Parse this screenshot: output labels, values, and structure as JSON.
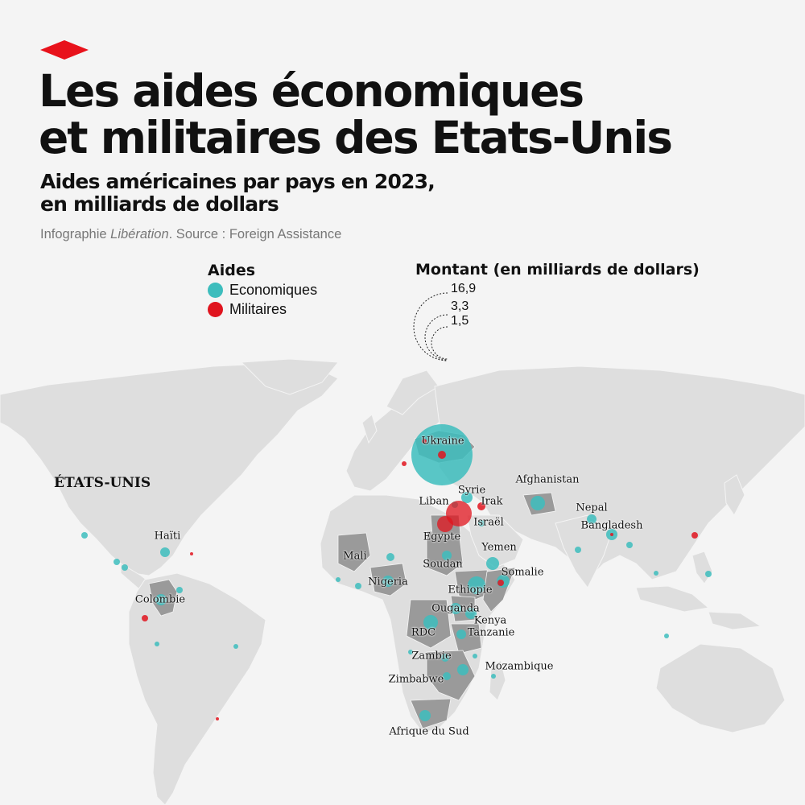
{
  "header": {
    "title_line1": "Les aides économiques",
    "title_line2": "et militaires des Etats-Unis",
    "subtitle_line1": "Aides américaines par pays en 2023,",
    "subtitle_line2": "en milliards de dollars",
    "credit_prefix": "Infographie ",
    "credit_brand": "Libération",
    "credit_suffix": ". Source : Foreign Assistance"
  },
  "legend": {
    "type_title": "Aides",
    "types": [
      {
        "label": "Economiques",
        "color": "#3dbdbd"
      },
      {
        "label": "Militaires",
        "color": "#e0141e"
      }
    ],
    "size_title": "Montant (en milliards de dollars)",
    "sizes": [
      {
        "label": "16,9",
        "value": 16.9
      },
      {
        "label": "3,3",
        "value": 3.3
      },
      {
        "label": "1,5",
        "value": 1.5
      }
    ]
  },
  "colors": {
    "economic": "#3dbdbd",
    "military": "#e0141e",
    "land": "#dedede",
    "highlight": "#9a9a9a",
    "accent": "#e8121b"
  },
  "map": {
    "us_label": "ÉTATS-UNIS",
    "country_labels": [
      "Ukraine",
      "Afghanistan",
      "Syrie",
      "Liban",
      "Irak",
      "Israël",
      "Egypte",
      "Nepal",
      "Bangladesh",
      "Haïti",
      "Mali",
      "Yemen",
      "Soudan",
      "Somalie",
      "Nigeria",
      "Ethiopie",
      "Colombie",
      "Ouganda",
      "Kenya",
      "RDC",
      "Tanzanie",
      "Zambie",
      "Mozambique",
      "Zimbabwe",
      "Afrique du Sud"
    ]
  }
}
